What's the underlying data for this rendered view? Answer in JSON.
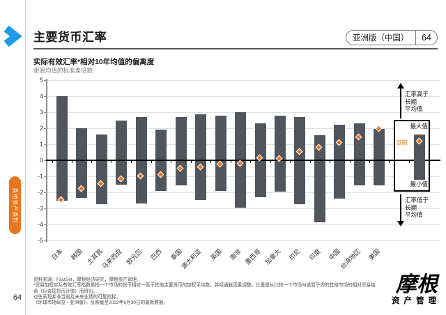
{
  "page": {
    "side_tab_label": "其他资产类别",
    "page_number": "64",
    "header": {
      "title": "主要货币汇率",
      "edition_badge": "亚洲版（中国）",
      "edition_page": "64"
    },
    "footer": {
      "lines": [
        "资料来源：FactSet，摩根经济研究，摩根资产管理。",
        "*贸易加权实际有效汇率指数是指一个市场的货币相对一篮子其他主要货币的加权平均数，并经通胀因素调整。比重是从比较一个市场与该篮子内的其他市场的相对贸易结",
        "余（以该国货币计值）而得出。",
        "过往表现并非当前及未来业绩的可靠指标。",
        "《环球市场纵览 - 亚洲版》。反映截至2022年6月30日的最新数据。"
      ],
      "logo_main": "摩根",
      "logo_sub": "资产管理"
    }
  },
  "chart_data": {
    "type": "bar",
    "subtype": "floating-range-bar-with-current-marker",
    "title": "实际有效汇率*相对10年均值的偏离度",
    "subtitle": "距离均值的标准差倍数",
    "ylim": [
      -5,
      5
    ],
    "yticks": [
      5,
      4,
      3,
      2,
      1,
      0,
      -1,
      -2,
      -3,
      -4,
      -5
    ],
    "grid": true,
    "legend_position": "right",
    "categories": [
      "日本",
      "韩国",
      "土耳其",
      "马来西亚",
      "欧元区",
      "巴西",
      "泰国",
      "澳大利亚",
      "英国",
      "南非",
      "墨西哥",
      "加拿大",
      "印尼",
      "印度",
      "中国",
      "台湾地区",
      "美国"
    ],
    "series": [
      {
        "name": "最大值",
        "values": [
          4.0,
          2.0,
          1.6,
          2.5,
          2.7,
          1.9,
          2.7,
          2.85,
          2.8,
          3.0,
          2.3,
          2.8,
          2.7,
          1.55,
          2.2,
          2.3,
          1.95
        ]
      },
      {
        "name": "最小值",
        "values": [
          -2.5,
          -2.35,
          -2.75,
          -1.5,
          -2.7,
          -1.9,
          -1.55,
          -2.5,
          -1.9,
          -2.95,
          -2.3,
          -1.95,
          -2.75,
          -3.85,
          -2.4,
          -1.55,
          -1.55
        ]
      },
      {
        "name": "当前",
        "values": [
          -2.5,
          -1.8,
          -1.5,
          -1.2,
          -1.0,
          -0.95,
          -0.55,
          -0.45,
          -0.3,
          -0.25,
          0.1,
          0.05,
          0.5,
          0.75,
          1.05,
          1.4,
          1.95
        ]
      }
    ],
    "legend": {
      "above_label": "汇率高于\n长期\n平均值",
      "below_label": "汇率低于\n长期\n平均值",
      "max_label": "最大值",
      "current_label": "当前",
      "min_label": "最小值",
      "sample": {
        "max": 1.6,
        "min": -1.2,
        "current": 1.15
      }
    },
    "colors": {
      "bar": "#51565D",
      "current_marker": "#E87722",
      "accent_blue": "#1D9BE8",
      "tab_orange": "#E87722"
    }
  }
}
